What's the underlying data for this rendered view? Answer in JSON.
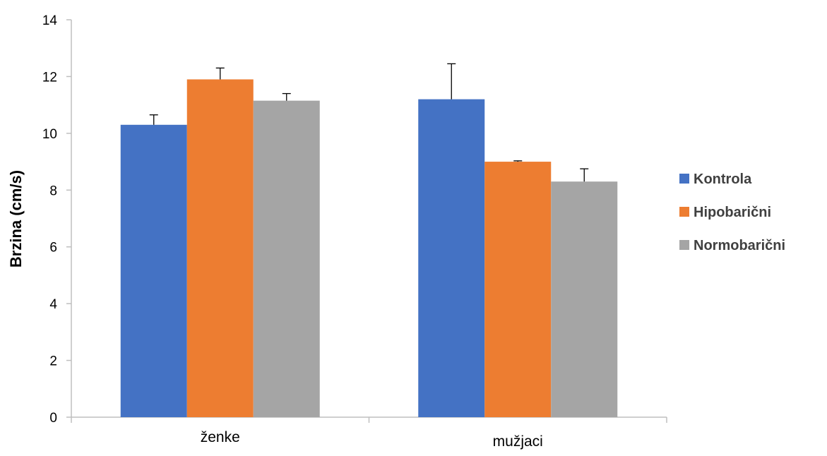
{
  "chart_data": {
    "type": "bar",
    "categories": [
      "ženke",
      "mužjaci"
    ],
    "series": [
      {
        "name": "Kontrola",
        "color": "#4472C4",
        "values": [
          10.3,
          11.2
        ],
        "error": [
          0.35,
          1.25
        ]
      },
      {
        "name": "Hipobarični",
        "color": "#ED7D31",
        "values": [
          11.9,
          9.0
        ],
        "error": [
          0.4,
          0.03
        ]
      },
      {
        "name": "Normobarični",
        "color": "#A5A5A5",
        "values": [
          11.15,
          8.3
        ],
        "error": [
          0.25,
          0.45
        ]
      }
    ],
    "ylabel": "Brzina (cm/s)",
    "xlabel": "",
    "ylim": [
      0,
      14
    ],
    "yticks": [
      0,
      2,
      4,
      6,
      8,
      10,
      12,
      14
    ],
    "grid": false,
    "legend_position": "right"
  }
}
